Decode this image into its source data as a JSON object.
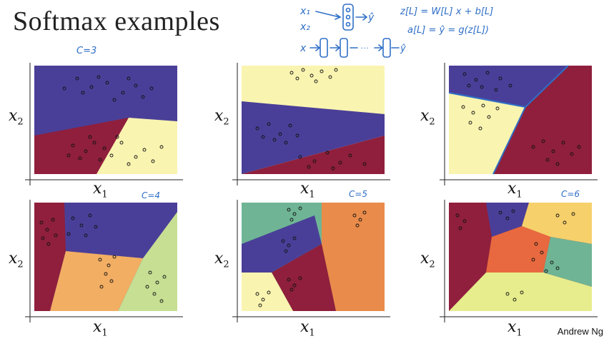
{
  "slide": {
    "title": "Softmax examples",
    "author": "Andrew Ng",
    "annotations": {
      "c1": "C=3",
      "c4": "C=4",
      "c5": "C=5",
      "c6": "C=6"
    },
    "handwritten_notes": [
      "x1",
      "x2",
      "ŷ",
      "x",
      "z[l] = W[l] x + b[l]",
      "a[l] = ŷ = g(z[l])"
    ]
  },
  "axis_labels": {
    "x": "x",
    "x_sub": "1",
    "y": "x",
    "y_sub": "2"
  },
  "colors": {
    "navy": "#4a3f98",
    "maroon": "#8f1f3c",
    "cream": "#f9f4b0",
    "orange": "#f2ae63",
    "green": "#c6df93",
    "teal": "#6fb595",
    "rust": "#e8693f",
    "lime": "#e7ed8c",
    "gold": "#f6d06b",
    "ink": "#2f6fc7"
  },
  "chart_data": [
    {
      "type": "scatter",
      "panel": "c=3 top-left",
      "regions": [
        "navy",
        "maroon",
        "cream"
      ],
      "classes": 3
    },
    {
      "type": "scatter",
      "panel": "top-middle",
      "regions": [
        "cream",
        "navy",
        "maroon"
      ],
      "classes": 3
    },
    {
      "type": "scatter",
      "panel": "top-right",
      "regions": [
        "navy",
        "maroon",
        "cream"
      ],
      "classes": 3
    },
    {
      "type": "scatter",
      "panel": "c=4 bottom-left",
      "regions": [
        "maroon",
        "navy",
        "orange",
        "green"
      ],
      "classes": 4
    },
    {
      "type": "scatter",
      "panel": "c=5 bottom-middle",
      "regions": [
        "green",
        "navy",
        "orange",
        "maroon",
        "cream"
      ],
      "classes": 5
    },
    {
      "type": "scatter",
      "panel": "c=6 bottom-right",
      "regions": [
        "maroon",
        "navy",
        "gold",
        "rust",
        "teal",
        "lime"
      ],
      "classes": 6
    }
  ]
}
